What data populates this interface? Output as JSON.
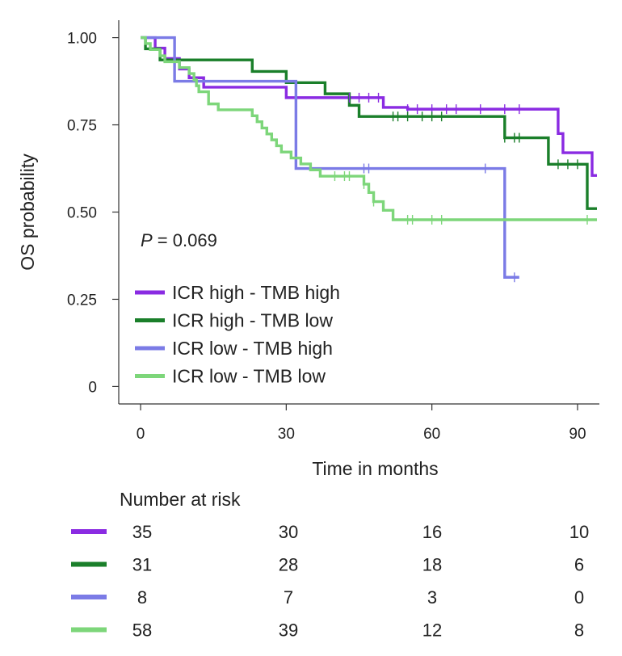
{
  "chart_data": {
    "type": "line",
    "subtype": "kaplan-meier",
    "xlabel": "Time in months",
    "ylabel": "OS probability",
    "xlim": [
      -4.5,
      94.5
    ],
    "ylim": [
      -0.05,
      1.05
    ],
    "xticks": [
      0,
      30,
      60,
      90
    ],
    "yticks": [
      1.0,
      0.75,
      0.5,
      0.25,
      0
    ],
    "ytick_labels": [
      "1.00",
      "0.75",
      "0.50",
      "0.25",
      "0"
    ],
    "annotation": {
      "p_label": "P",
      "p_text": " = 0.069"
    },
    "series": [
      {
        "name": "ICR high - TMB high",
        "color": "#8a2be2",
        "steps": [
          [
            0,
            1.0
          ],
          [
            3,
            0.97
          ],
          [
            5,
            0.94
          ],
          [
            8,
            0.91
          ],
          [
            10,
            0.885
          ],
          [
            13,
            0.858
          ],
          [
            22,
            0.858
          ],
          [
            30,
            0.828
          ],
          [
            50,
            0.8
          ],
          [
            55,
            0.795
          ],
          [
            86,
            0.725
          ],
          [
            87,
            0.67
          ],
          [
            93,
            0.605
          ],
          [
            94,
            0.605
          ]
        ],
        "censor": [
          [
            43,
            0.828
          ],
          [
            45,
            0.828
          ],
          [
            47,
            0.828
          ],
          [
            49,
            0.828
          ],
          [
            55,
            0.795
          ],
          [
            57,
            0.795
          ],
          [
            60,
            0.795
          ],
          [
            63,
            0.795
          ],
          [
            65,
            0.795
          ],
          [
            70,
            0.795
          ],
          [
            75,
            0.795
          ],
          [
            78,
            0.795
          ]
        ]
      },
      {
        "name": "ICR high - TMB low",
        "color": "#1a7f2a",
        "steps": [
          [
            0,
            1.0
          ],
          [
            1,
            0.968
          ],
          [
            4,
            0.936
          ],
          [
            23,
            0.903
          ],
          [
            30,
            0.871
          ],
          [
            38,
            0.839
          ],
          [
            43,
            0.806
          ],
          [
            45,
            0.774
          ],
          [
            75,
            0.713
          ],
          [
            84,
            0.637
          ],
          [
            92,
            0.51
          ],
          [
            94,
            0.51
          ]
        ],
        "censor": [
          [
            52,
            0.774
          ],
          [
            53,
            0.774
          ],
          [
            55,
            0.774
          ],
          [
            58,
            0.774
          ],
          [
            60,
            0.774
          ],
          [
            62,
            0.774
          ],
          [
            75,
            0.713
          ],
          [
            77,
            0.713
          ],
          [
            78,
            0.713
          ],
          [
            86,
            0.637
          ],
          [
            88,
            0.637
          ],
          [
            90,
            0.637
          ]
        ]
      },
      {
        "name": "ICR low - TMB high",
        "color": "#7b7be6",
        "steps": [
          [
            0,
            1.0
          ],
          [
            7,
            0.875
          ],
          [
            32,
            0.625
          ],
          [
            75,
            0.313
          ],
          [
            78,
            0.313
          ]
        ],
        "censor": [
          [
            46,
            0.625
          ],
          [
            47,
            0.625
          ],
          [
            71,
            0.625
          ],
          [
            77,
            0.313
          ]
        ]
      },
      {
        "name": "ICR low - TMB low",
        "color": "#7dd67a",
        "steps": [
          [
            0,
            1.0
          ],
          [
            1,
            0.983
          ],
          [
            2,
            0.966
          ],
          [
            4,
            0.948
          ],
          [
            5,
            0.931
          ],
          [
            8,
            0.914
          ],
          [
            10,
            0.897
          ],
          [
            11,
            0.879
          ],
          [
            11.5,
            0.862
          ],
          [
            12,
            0.845
          ],
          [
            14,
            0.81
          ],
          [
            16,
            0.793
          ],
          [
            23,
            0.776
          ],
          [
            24,
            0.759
          ],
          [
            25,
            0.741
          ],
          [
            26,
            0.724
          ],
          [
            27,
            0.707
          ],
          [
            28,
            0.69
          ],
          [
            29,
            0.672
          ],
          [
            31,
            0.655
          ],
          [
            33,
            0.638
          ],
          [
            35,
            0.621
          ],
          [
            37,
            0.603
          ],
          [
            46,
            0.58
          ],
          [
            47,
            0.556
          ],
          [
            48,
            0.53
          ],
          [
            50,
            0.505
          ],
          [
            52,
            0.478
          ],
          [
            94,
            0.478
          ]
        ],
        "censor": [
          [
            40,
            0.603
          ],
          [
            42,
            0.603
          ],
          [
            43,
            0.603
          ],
          [
            46,
            0.58
          ],
          [
            48,
            0.53
          ],
          [
            55,
            0.478
          ],
          [
            56,
            0.478
          ],
          [
            60,
            0.478
          ],
          [
            62,
            0.478
          ],
          [
            92,
            0.478
          ]
        ]
      }
    ],
    "risk_table": {
      "title": "Number at risk",
      "times": [
        0,
        30,
        60,
        90
      ],
      "rows": [
        {
          "color": "#8a2be2",
          "values": [
            "35",
            "30",
            "16",
            "10"
          ]
        },
        {
          "color": "#1a7f2a",
          "values": [
            "31",
            "28",
            "18",
            "6"
          ]
        },
        {
          "color": "#7b7be6",
          "values": [
            "8",
            "7",
            "3",
            "0"
          ]
        },
        {
          "color": "#7dd67a",
          "values": [
            "58",
            "39",
            "12",
            "8"
          ]
        }
      ]
    }
  }
}
